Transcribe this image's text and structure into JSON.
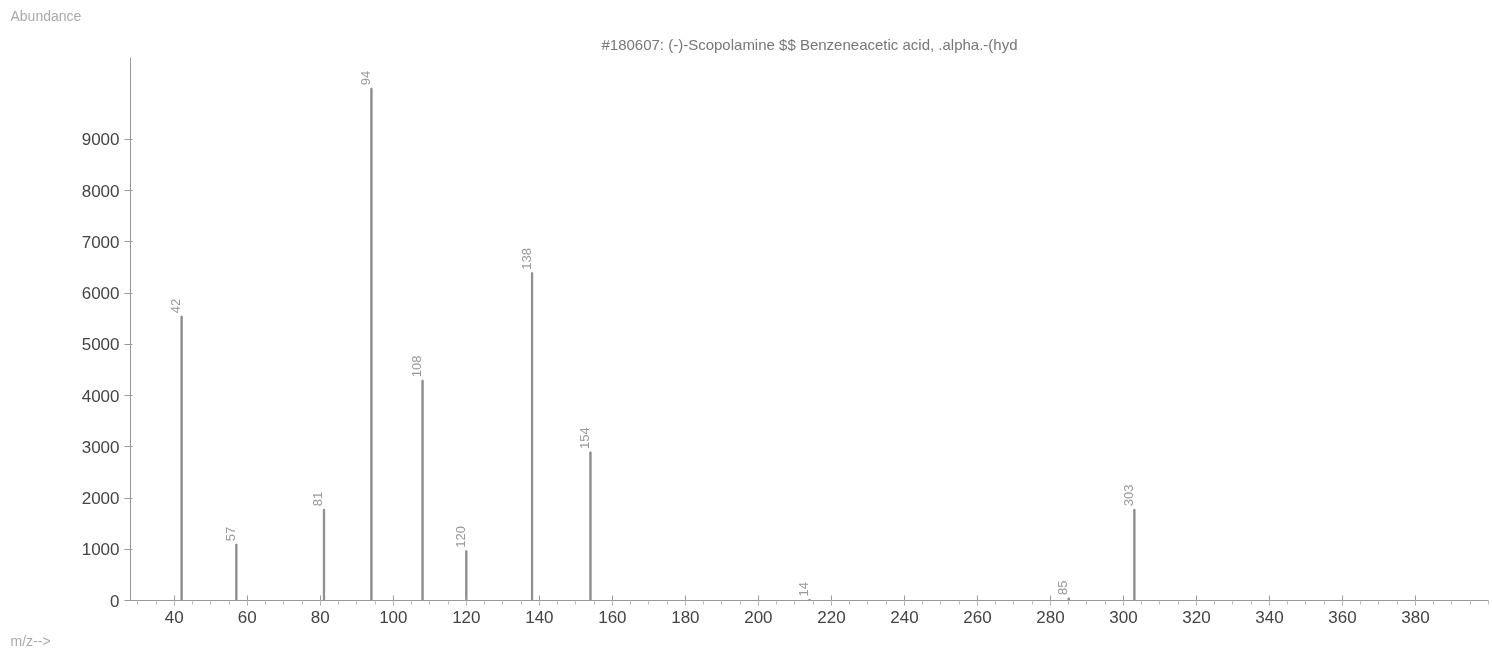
{
  "chart_data": {
    "type": "bar",
    "title": "#180607: (-)-Scopolamine $$ Benzeneacetic acid, .alpha.-(hyd",
    "xlabel": "m/z-->",
    "ylabel": "Abundance",
    "x": [
      42,
      57,
      81,
      94,
      108,
      120,
      138,
      154,
      214,
      285,
      303
    ],
    "values": [
      5550,
      1100,
      1780,
      10000,
      4300,
      970,
      6400,
      2900,
      20,
      50,
      1780
    ],
    "annotations": [
      {
        "text": "42",
        "x": 42,
        "y": 5550
      },
      {
        "text": "57",
        "x": 57,
        "y": 1100
      },
      {
        "text": "81",
        "x": 81,
        "y": 1780
      },
      {
        "text": "94",
        "x": 94,
        "y": 10000
      },
      {
        "text": "108",
        "x": 108,
        "y": 4300
      },
      {
        "text": "120",
        "x": 120,
        "y": 970
      },
      {
        "text": "138",
        "x": 138,
        "y": 6400
      },
      {
        "text": "154",
        "x": 154,
        "y": 2900
      },
      {
        "text": "14",
        "x": 214,
        "y": 20
      },
      {
        "text": "85",
        "x": 285,
        "y": 50
      },
      {
        "text": "303",
        "x": 303,
        "y": 1780
      }
    ],
    "color": "#8c8c8c",
    "xlim": [
      28,
      400
    ],
    "xticks": [
      40,
      60,
      80,
      100,
      120,
      140,
      160,
      180,
      200,
      220,
      240,
      260,
      280,
      300,
      320,
      340,
      360,
      380
    ],
    "ylim": [
      0,
      10600
    ],
    "yticks": [
      0,
      1000,
      2000,
      3000,
      4000,
      5000,
      6000,
      7000,
      8000,
      9000
    ],
    "grid": false
  }
}
